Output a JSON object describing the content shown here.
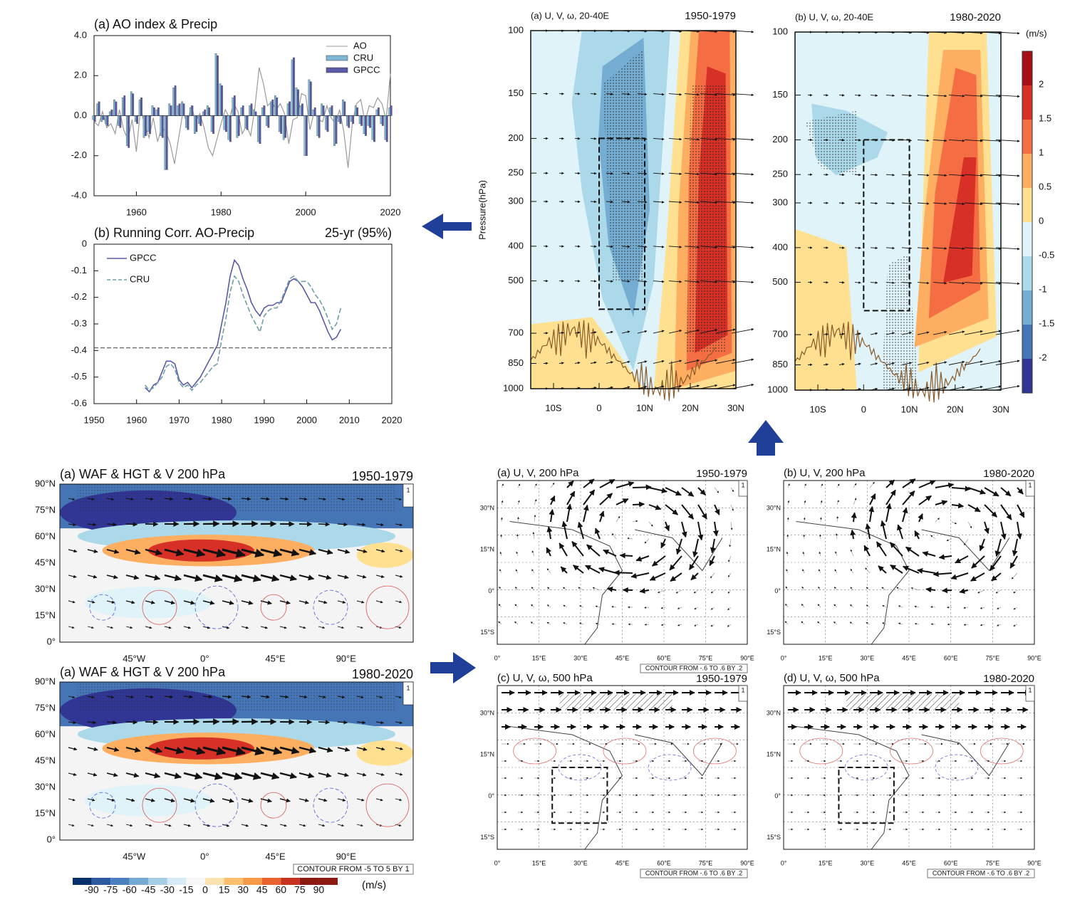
{
  "chart_data": [
    {
      "type": "bar",
      "title": "(a) AO index & Precip",
      "x": [
        1950,
        1951,
        1952,
        1953,
        1954,
        1955,
        1956,
        1957,
        1958,
        1959,
        1960,
        1961,
        1962,
        1963,
        1964,
        1965,
        1966,
        1967,
        1968,
        1969,
        1970,
        1971,
        1972,
        1973,
        1974,
        1975,
        1976,
        1977,
        1978,
        1979,
        1980,
        1981,
        1982,
        1983,
        1984,
        1985,
        1986,
        1987,
        1988,
        1989,
        1990,
        1991,
        1992,
        1993,
        1994,
        1995,
        1996,
        1997,
        1998,
        1999,
        2000,
        2001,
        2002,
        2003,
        2004,
        2005,
        2006,
        2007,
        2008,
        2009,
        2010,
        2011,
        2012,
        2013,
        2014,
        2015,
        2016,
        2017,
        2018,
        2019,
        2020
      ],
      "series": [
        {
          "name": "AO",
          "type": "line",
          "color": "#9a9a9a",
          "values": [
            -0.3,
            -0.5,
            0.2,
            -0.6,
            -0.4,
            -0.9,
            0.3,
            -0.7,
            -1.2,
            -0.2,
            -1.8,
            0.4,
            -0.5,
            -1.1,
            -0.1,
            -1.3,
            -0.6,
            -0.8,
            -1.4,
            -2.4,
            -1.1,
            0.2,
            -0.4,
            0.5,
            -0.3,
            0.1,
            -0.6,
            -1.6,
            -2.0,
            -1.2,
            -0.4,
            0.3,
            -0.1,
            0.6,
            0.2,
            -0.9,
            -0.5,
            -1.0,
            0.4,
            2.4,
            1.6,
            0.5,
            0.7,
            0.3,
            0.6,
            0.1,
            -1.4,
            -0.2,
            -0.1,
            1.1,
            1.0,
            -0.7,
            0.2,
            -0.2,
            -0.3,
            0.5,
            -0.1,
            -0.4,
            0.3,
            -0.8,
            -2.6,
            -0.4,
            0.6,
            0.8,
            -0.3,
            0.5,
            0.4,
            0.9,
            0.6,
            -0.2,
            2.1
          ]
        },
        {
          "name": "CRU",
          "type": "bar",
          "color": "#7fb8d6",
          "values": [
            -0.2,
            0.6,
            -0.3,
            -0.4,
            0.2,
            0.8,
            -0.5,
            0.9,
            -1.5,
            1.2,
            -0.3,
            0.8,
            -1.1,
            -0.8,
            0.5,
            0.3,
            -1.0,
            -2.7,
            0.6,
            1.4,
            0.5,
            0.7,
            -0.6,
            0.4,
            -0.9,
            -0.4,
            0.2,
            0.5,
            -0.8,
            3.1,
            1.6,
            -0.7,
            -1.2,
            0.9,
            -1.1,
            0.4,
            -0.6,
            0.5,
            0.3,
            -1.3,
            0.4,
            -0.5,
            0.7,
            1.0,
            -0.8,
            -1.2,
            0.6,
            2.8,
            1.4,
            0.5,
            -2.0,
            1.8,
            0.3,
            -1.0,
            0.6,
            -0.7,
            0.4,
            -1.5,
            -0.3,
            0.8,
            -0.5,
            -0.3,
            0.5,
            -0.4,
            -0.9,
            -0.5,
            -1.2,
            0.3,
            -0.4,
            -1.2,
            0.4
          ]
        },
        {
          "name": "GPCC",
          "type": "bar",
          "color": "#5a5aa8",
          "values": [
            -0.3,
            0.7,
            -0.2,
            -0.5,
            0.3,
            0.7,
            -0.6,
            1.0,
            -1.6,
            1.1,
            -0.4,
            0.9,
            -1.0,
            -0.9,
            0.4,
            0.4,
            -1.1,
            -2.7,
            0.5,
            1.5,
            0.6,
            0.6,
            -0.7,
            0.5,
            -0.8,
            -0.5,
            0.3,
            0.4,
            -0.9,
            3.0,
            1.5,
            -0.8,
            -1.3,
            1.0,
            -1.0,
            0.5,
            -0.7,
            0.6,
            0.2,
            -1.4,
            0.5,
            -0.6,
            0.8,
            0.9,
            -0.9,
            -1.1,
            0.7,
            2.9,
            1.3,
            0.6,
            -2.0,
            1.7,
            0.4,
            -1.1,
            0.5,
            -0.8,
            0.5,
            -1.4,
            -0.4,
            0.7,
            -0.6,
            -0.4,
            0.4,
            -0.5,
            -1.0,
            -0.6,
            -1.3,
            0.4,
            -0.5,
            -1.3,
            0.5
          ]
        }
      ],
      "xlim": [
        1950,
        2020
      ],
      "xticks": [
        1960,
        1980,
        2000,
        2020
      ],
      "ylim": [
        -4,
        4
      ],
      "yticks": [
        {
          "value": 4,
          "label": "4.0"
        },
        {
          "value": 2,
          "label": "2.0"
        },
        {
          "value": 0,
          "label": "0.0"
        },
        {
          "value": -2,
          "label": "-2.0"
        },
        {
          "value": -4,
          "label": "-4.0"
        }
      ],
      "legend": "upper right"
    },
    {
      "type": "line",
      "title": "(b) Running Corr. AO-Precip",
      "subtitle": "25-yr (95%)",
      "x": [
        1962,
        1963,
        1964,
        1965,
        1966,
        1967,
        1968,
        1969,
        1970,
        1971,
        1972,
        1973,
        1974,
        1975,
        1976,
        1977,
        1978,
        1979,
        1980,
        1981,
        1982,
        1983,
        1984,
        1985,
        1986,
        1987,
        1988,
        1989,
        1990,
        1991,
        1992,
        1993,
        1994,
        1995,
        1996,
        1997,
        1998,
        1999,
        2000,
        2001,
        2002,
        2003,
        2004,
        2005,
        2006,
        2007,
        2008
      ],
      "series": [
        {
          "name": "GPCC",
          "color": "#5a5aa8",
          "dash": false,
          "values": [
            -0.54,
            -0.555,
            -0.53,
            -0.52,
            -0.48,
            -0.44,
            -0.44,
            -0.45,
            -0.51,
            -0.53,
            -0.52,
            -0.54,
            -0.52,
            -0.5,
            -0.47,
            -0.44,
            -0.41,
            -0.38,
            -0.3,
            -0.22,
            -0.12,
            -0.06,
            -0.08,
            -0.13,
            -0.17,
            -0.22,
            -0.25,
            -0.27,
            -0.24,
            -0.23,
            -0.23,
            -0.22,
            -0.22,
            -0.18,
            -0.14,
            -0.13,
            -0.14,
            -0.16,
            -0.19,
            -0.22,
            -0.22,
            -0.25,
            -0.29,
            -0.33,
            -0.36,
            -0.35,
            -0.32
          ]
        },
        {
          "name": "CRU",
          "color": "#6f9fa8",
          "dash": true,
          "values": [
            -0.53,
            -0.55,
            -0.54,
            -0.52,
            -0.5,
            -0.46,
            -0.45,
            -0.47,
            -0.52,
            -0.54,
            -0.53,
            -0.55,
            -0.53,
            -0.52,
            -0.5,
            -0.48,
            -0.46,
            -0.45,
            -0.36,
            -0.28,
            -0.18,
            -0.12,
            -0.14,
            -0.19,
            -0.23,
            -0.27,
            -0.3,
            -0.33,
            -0.27,
            -0.25,
            -0.24,
            -0.24,
            -0.21,
            -0.17,
            -0.13,
            -0.12,
            -0.14,
            -0.14,
            -0.14,
            -0.16,
            -0.19,
            -0.21,
            -0.24,
            -0.28,
            -0.32,
            -0.3,
            -0.24
          ]
        }
      ],
      "threshold": -0.39,
      "xlim": [
        1950,
        2020
      ],
      "xticks": [
        1950,
        1960,
        1970,
        1980,
        1990,
        2000,
        2010,
        2020
      ],
      "ylim": [
        -0.6,
        0
      ],
      "yticks": [
        0,
        -0.1,
        -0.2,
        -0.3,
        -0.4,
        -0.5,
        -0.6
      ],
      "legend": "upper left"
    }
  ],
  "cross_sections": {
    "panels": [
      {
        "title": "(a) U, V, ω, 20-40E",
        "period": "1950-1979"
      },
      {
        "title": "(b) U, V, ω, 20-40E",
        "period": "1980-2020"
      }
    ],
    "ylabel": "Pressure(hPa)",
    "log_scale": true,
    "ylim": [
      100,
      1000
    ],
    "yticks": [
      100,
      150,
      200,
      250,
      300,
      400,
      500,
      700,
      850,
      1000
    ],
    "xlim": [
      -15,
      30
    ],
    "xticks": [
      {
        "value": -10,
        "label": "10S"
      },
      {
        "value": 0,
        "label": "0"
      },
      {
        "value": 10,
        "label": "10N"
      },
      {
        "value": 20,
        "label": "20N"
      },
      {
        "value": 30,
        "label": "30N"
      }
    ],
    "colorbar": {
      "unit": "(m/s)",
      "ticks": [
        2,
        1.5,
        1,
        0.5,
        0,
        -0.5,
        -1,
        -1.5,
        -2
      ],
      "colors": [
        "#a50f15",
        "#d73027",
        "#f46d43",
        "#fdae61",
        "#fee090",
        "#e0f3f8",
        "#abd9e9",
        "#74add1",
        "#4575b4",
        "#313695"
      ]
    }
  },
  "wave_maps": {
    "panels": [
      {
        "title": "(a) WAF & HGT & V 200 hPa",
        "period": "1950-1979"
      },
      {
        "title": "(a) WAF & HGT & V 200 hPa",
        "period": "1980-2020"
      }
    ],
    "lat_labels": [
      "90°N",
      "75°N",
      "60°N",
      "45°N",
      "30°N",
      "15°N",
      "0°"
    ],
    "lon_labels": [
      "45°W",
      "0°",
      "45°E",
      "90°E"
    ],
    "ref_vector": "1",
    "contour_note": "CONTOUR FROM -5 TO 5 BY 1",
    "colorbar": {
      "unit": "(m/s)",
      "ticks": [
        -90,
        -75,
        -60,
        -45,
        -30,
        -15,
        0,
        15,
        30,
        45,
        60,
        75,
        90
      ]
    }
  },
  "wind_maps": {
    "panels": [
      {
        "title": "(a) U, V, 200 hPa",
        "period": "1950-1979"
      },
      {
        "title": "(b) U, V, 200 hPa",
        "period": "1980-2020"
      },
      {
        "title": "(c) U, V, ω, 500 hPa",
        "period": "1950-1979"
      },
      {
        "title": "(d) U, V, ω, 500 hPa",
        "period": "1980-2020"
      }
    ],
    "lat_labels": [
      "30°N",
      "15°N",
      "0°",
      "15°S"
    ],
    "lon_labels": [
      "0°",
      "15°E",
      "30°E",
      "45°E",
      "60°E",
      "75°E",
      "90°E"
    ],
    "ref_vector": "1",
    "contour_note": "CONTOUR FROM -.6 TO .6 BY .2"
  }
}
